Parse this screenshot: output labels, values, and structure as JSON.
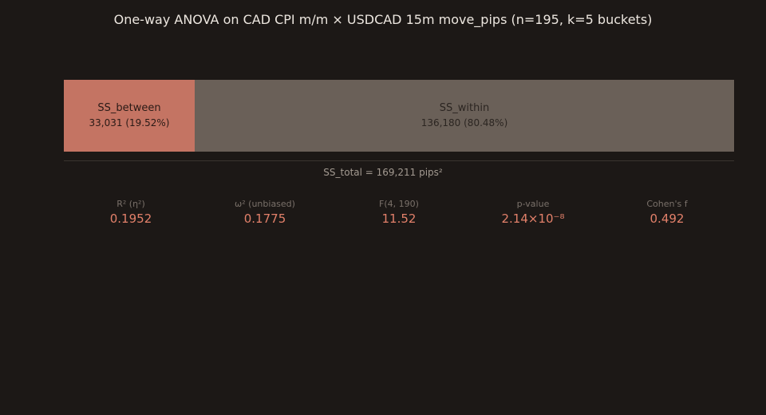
{
  "chart_data": {
    "type": "bar",
    "orientation": "horizontal-stacked",
    "title": "One-way ANOVA on CAD CPI m/m × USDCAD 15m move_pips (n=195, k=5 buckets)",
    "segments": [
      {
        "name": "SS_between",
        "value": 33031,
        "value_label": "33,031 (19.52%)",
        "percent": 19.52,
        "color": "#c47463"
      },
      {
        "name": "SS_within",
        "value": 136180,
        "value_label": "136,180 (80.48%)",
        "percent": 80.48,
        "color": "#6a6058"
      }
    ],
    "total": {
      "value": 169211,
      "label": "SS_total = 169,211 pips²"
    },
    "stats": [
      {
        "label": "R² (η²)",
        "value": "0.1952"
      },
      {
        "label": "ω² (unbiased)",
        "value": "0.1775"
      },
      {
        "label": "F(4, 190)",
        "value": "11.52"
      },
      {
        "label": "p-value",
        "value": "2.14×10⁻⁸"
      },
      {
        "label": "Cohen's f",
        "value": "0.492"
      }
    ]
  },
  "colors": {
    "background": "#1c1816",
    "accent": "#e2806a",
    "title": "#ece6df",
    "muted": "#7a716a"
  }
}
